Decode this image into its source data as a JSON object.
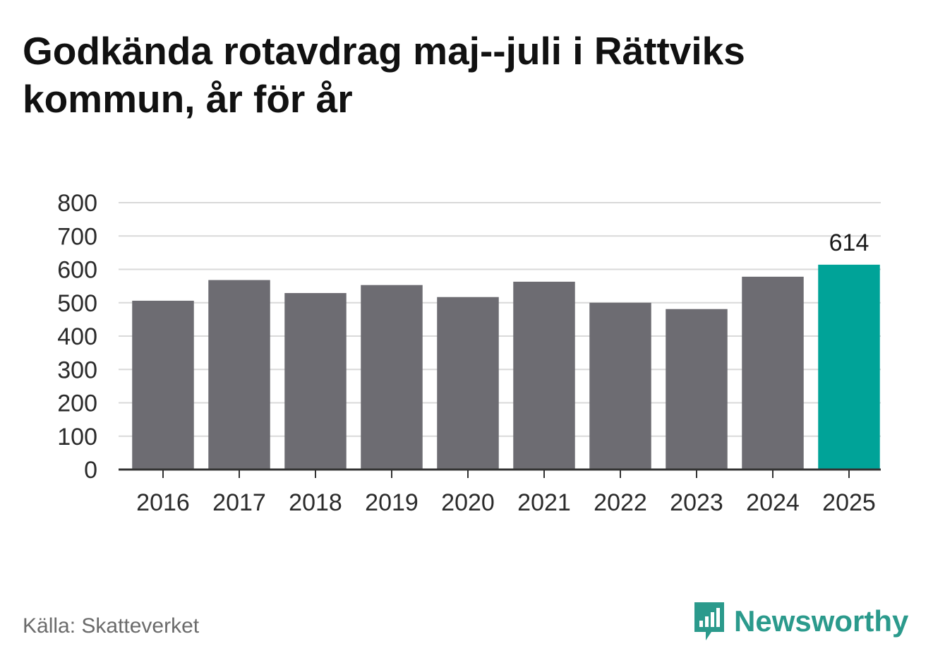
{
  "title": "Godkända rotavdrag maj--juli i Rättviks kommun, år för år",
  "source": "Källa: Skatteverket",
  "brand": {
    "name": "Newsworthy",
    "icon": "newsworthy-logo-icon"
  },
  "colors": {
    "bar": "#6d6c72",
    "highlight": "#00a398",
    "grid": "#d9d9d9",
    "axis": "#333333",
    "brand": "#2b9a8c"
  },
  "chart_data": {
    "type": "bar",
    "categories": [
      "2016",
      "2017",
      "2018",
      "2019",
      "2020",
      "2021",
      "2022",
      "2023",
      "2024",
      "2025"
    ],
    "values": [
      506,
      568,
      529,
      553,
      517,
      563,
      500,
      481,
      578,
      614
    ],
    "highlight_index": 9,
    "data_labels": [
      {
        "index": 9,
        "text": "614"
      }
    ],
    "title": "Godkända rotavdrag maj--juli i Rättviks kommun, år för år",
    "xlabel": "",
    "ylabel": "",
    "ylim": [
      0,
      800
    ],
    "yticks": [
      0,
      100,
      200,
      300,
      400,
      500,
      600,
      700,
      800
    ],
    "grid": true,
    "legend": "none"
  }
}
